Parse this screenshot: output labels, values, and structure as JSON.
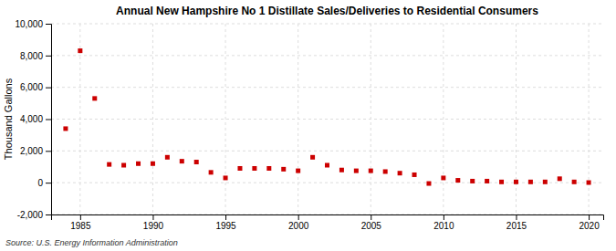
{
  "chart_data": {
    "type": "scatter",
    "title": "Annual New Hampshire No 1 Distillate Sales/Deliveries to Residential Consumers",
    "ylabel": "Thousand Gallons",
    "annotations": [
      "Source: U.S. Energy Information Administration"
    ],
    "x": [
      1984,
      1985,
      1986,
      1987,
      1988,
      1989,
      1990,
      1991,
      1992,
      1993,
      1994,
      1995,
      1996,
      1997,
      1998,
      1999,
      2000,
      2001,
      2002,
      2003,
      2004,
      2005,
      2006,
      2007,
      2008,
      2009,
      2010,
      2011,
      2012,
      2013,
      2014,
      2015,
      2016,
      2017,
      2018,
      2019,
      2020
    ],
    "values": [
      3400,
      8300,
      5300,
      1150,
      1100,
      1200,
      1200,
      1600,
      1350,
      1300,
      650,
      300,
      900,
      900,
      900,
      850,
      750,
      1600,
      1100,
      800,
      750,
      750,
      700,
      600,
      500,
      -50,
      300,
      150,
      100,
      100,
      50,
      50,
      50,
      50,
      250,
      50,
      10
    ],
    "color": "#cc0000",
    "marker": "square",
    "xlim": [
      1983,
      2021
    ],
    "ylim": [
      -2000,
      10000
    ],
    "xticks": [
      1985,
      1990,
      1995,
      2000,
      2005,
      2010,
      2015,
      2020
    ],
    "yticks": [
      {
        "value": -2000,
        "label": "-2,000"
      },
      0,
      {
        "value": 2000,
        "label": "2,000"
      },
      {
        "value": 4000,
        "label": "4,000"
      },
      {
        "value": 6000,
        "label": "6,000"
      },
      {
        "value": 8000,
        "label": "8,000"
      },
      {
        "value": 10000,
        "label": "10,000"
      }
    ],
    "grid": true
  }
}
